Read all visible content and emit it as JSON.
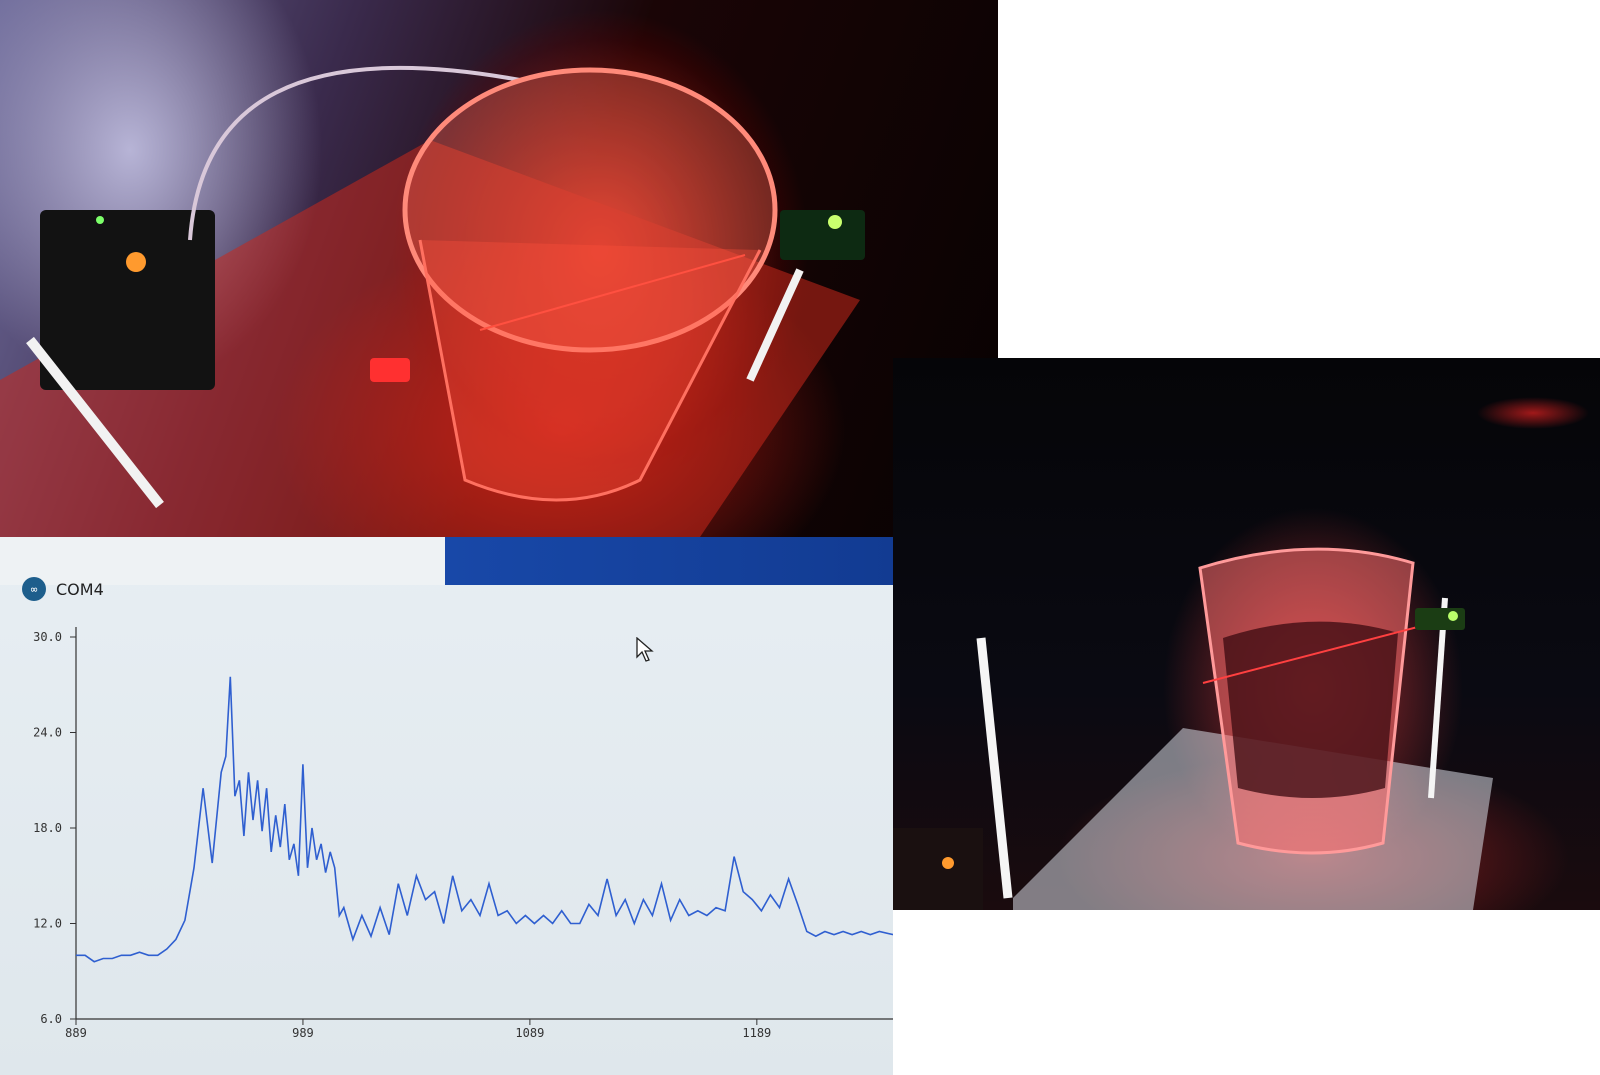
{
  "window": {
    "title": "COM4",
    "app_icon": "arduino-logo-icon"
  },
  "colors": {
    "trace": "#2f5fd0",
    "axis": "#333333",
    "screen_background": "#e4ebf0",
    "taskbar_blue": "#1848a8"
  },
  "chart_data": {
    "type": "line",
    "title": "",
    "xlabel": "",
    "ylabel": "",
    "xlim": [
      889,
      1249
    ],
    "ylim": [
      6.0,
      30.0
    ],
    "y_ticks": [
      "30.0",
      "24.0",
      "18.0",
      "12.0",
      "6.0"
    ],
    "x_ticks": [
      "889",
      "989",
      "1089",
      "1189"
    ],
    "grid": false,
    "series": [
      {
        "x": [
          889,
          893,
          897,
          901,
          905,
          909,
          913,
          917,
          921,
          925,
          929,
          933,
          937,
          941,
          945,
          949,
          953,
          955,
          957,
          959,
          961,
          963,
          965,
          967,
          969,
          971,
          973,
          975,
          977,
          979,
          981,
          983,
          985,
          987,
          989,
          991,
          993,
          995,
          997,
          999,
          1001,
          1003,
          1005,
          1007,
          1011,
          1015,
          1019,
          1023,
          1027,
          1031,
          1035,
          1039,
          1043,
          1047,
          1051,
          1055,
          1059,
          1063,
          1067,
          1071,
          1075,
          1079,
          1083,
          1087,
          1091,
          1095,
          1099,
          1103,
          1107,
          1111,
          1115,
          1119,
          1123,
          1127,
          1131,
          1135,
          1139,
          1143,
          1147,
          1151,
          1155,
          1159,
          1163,
          1167,
          1171,
          1175,
          1179,
          1183,
          1187,
          1191,
          1195,
          1199,
          1203,
          1207,
          1211,
          1215,
          1219,
          1223,
          1227,
          1231,
          1235,
          1239,
          1243,
          1249
        ],
        "y": [
          10.0,
          10.0,
          9.6,
          9.8,
          9.8,
          10.0,
          10.0,
          10.2,
          10.0,
          10.0,
          10.4,
          11.0,
          12.2,
          15.5,
          20.5,
          15.8,
          21.5,
          22.5,
          27.5,
          20.0,
          21.0,
          17.5,
          21.5,
          18.5,
          21.0,
          17.8,
          20.5,
          16.5,
          18.8,
          16.8,
          19.5,
          16.0,
          17.0,
          15.0,
          22.0,
          15.5,
          18.0,
          16.0,
          17.0,
          15.2,
          16.5,
          15.5,
          12.5,
          13.0,
          11.0,
          12.5,
          11.2,
          13.0,
          11.3,
          14.5,
          12.5,
          15.0,
          13.5,
          14.0,
          12.0,
          15.0,
          12.8,
          13.5,
          12.5,
          14.5,
          12.5,
          12.8,
          12.0,
          12.5,
          12.0,
          12.5,
          12.0,
          12.8,
          12.0,
          12.0,
          13.2,
          12.5,
          14.8,
          12.5,
          13.5,
          12.0,
          13.5,
          12.5,
          14.5,
          12.2,
          13.5,
          12.5,
          12.8,
          12.5,
          13.0,
          12.8,
          16.2,
          14.0,
          13.5,
          12.8,
          13.8,
          13.0,
          14.8,
          13.2,
          11.5,
          11.2,
          11.5,
          11.3,
          11.5,
          11.3,
          11.5,
          11.3,
          11.5,
          11.3
        ]
      }
    ]
  }
}
